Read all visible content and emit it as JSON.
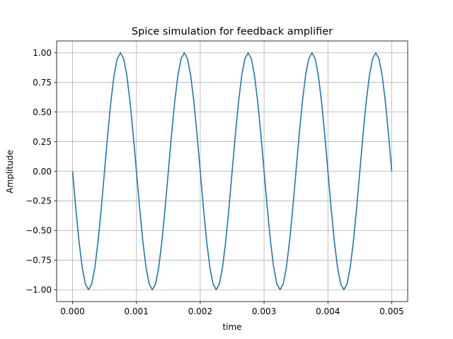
{
  "chart_data": {
    "type": "line",
    "title": "Spice simulation for feedback amplifier",
    "xlabel": "time",
    "ylabel": "Amplitude",
    "xlim": [
      -0.00025,
      0.00525
    ],
    "ylim": [
      -1.1,
      1.1
    ],
    "xticks": [
      "0.000",
      "0.001",
      "0.002",
      "0.003",
      "0.004",
      "0.005"
    ],
    "xtick_values": [
      0,
      0.001,
      0.002,
      0.003,
      0.004,
      0.005
    ],
    "yticks": [
      "−1.00",
      "−0.75",
      "−0.50",
      "−0.25",
      "0.00",
      "0.25",
      "0.50",
      "0.75",
      "1.00"
    ],
    "ytick_values": [
      -1,
      -0.75,
      -0.5,
      -0.25,
      0,
      0.25,
      0.5,
      0.75,
      1
    ],
    "grid": true,
    "line_color": "#1f77b4",
    "series": [
      {
        "x": [
          0,
          5e-05,
          0.0001,
          0.00015,
          0.0002,
          0.00025,
          0.0003,
          0.00035,
          0.0004,
          0.00045,
          0.0005,
          0.00055,
          0.0006,
          0.00065,
          0.0007,
          0.00075,
          0.0008,
          0.00085,
          0.0009,
          0.00095,
          0.001,
          0.00105,
          0.0011,
          0.00115,
          0.0012,
          0.00125,
          0.0013,
          0.00135,
          0.0014,
          0.00145,
          0.0015,
          0.00155,
          0.0016,
          0.00165,
          0.0017,
          0.00175,
          0.0018,
          0.00185,
          0.0019,
          0.00195,
          0.002,
          0.00205,
          0.0021,
          0.00215,
          0.0022,
          0.00225,
          0.0023,
          0.00235,
          0.0024,
          0.00245,
          0.0025,
          0.00255,
          0.0026,
          0.00265,
          0.0027,
          0.00275,
          0.0028,
          0.00285,
          0.0029,
          0.00295,
          0.003,
          0.00305,
          0.0031,
          0.00315,
          0.0032,
          0.00325,
          0.0033,
          0.00335,
          0.0034,
          0.00345,
          0.0035,
          0.00355,
          0.0036,
          0.00365,
          0.0037,
          0.00375,
          0.0038,
          0.00385,
          0.0039,
          0.00395,
          0.004,
          0.00405,
          0.0041,
          0.00415,
          0.0042,
          0.00425,
          0.0043,
          0.00435,
          0.0044,
          0.00445,
          0.0045,
          0.00455,
          0.0046,
          0.00465,
          0.0047,
          0.00475,
          0.0048,
          0.00485,
          0.0049,
          0.00495,
          0.005
        ],
        "y": [
          0,
          -0.309,
          -0.588,
          -0.809,
          -0.951,
          -1.0,
          -0.951,
          -0.809,
          -0.588,
          -0.309,
          0,
          0.309,
          0.588,
          0.809,
          0.951,
          1.0,
          0.951,
          0.809,
          0.588,
          0.309,
          0,
          -0.309,
          -0.588,
          -0.809,
          -0.951,
          -1.0,
          -0.951,
          -0.809,
          -0.588,
          -0.309,
          0,
          0.309,
          0.588,
          0.809,
          0.951,
          1.0,
          0.951,
          0.809,
          0.588,
          0.309,
          0,
          -0.309,
          -0.588,
          -0.809,
          -0.951,
          -1.0,
          -0.951,
          -0.809,
          -0.588,
          -0.309,
          0,
          0.309,
          0.588,
          0.809,
          0.951,
          1.0,
          0.951,
          0.809,
          0.588,
          0.309,
          0,
          -0.309,
          -0.588,
          -0.809,
          -0.951,
          -1.0,
          -0.951,
          -0.809,
          -0.588,
          -0.309,
          0,
          0.309,
          0.588,
          0.809,
          0.951,
          1.0,
          0.951,
          0.809,
          0.588,
          0.309,
          0,
          -0.309,
          -0.588,
          -0.809,
          -0.951,
          -1.0,
          -0.951,
          -0.809,
          -0.588,
          -0.309,
          0,
          0.309,
          0.588,
          0.809,
          0.951,
          1.0,
          0.951,
          0.809,
          0.588,
          0.309,
          0
        ]
      }
    ]
  }
}
